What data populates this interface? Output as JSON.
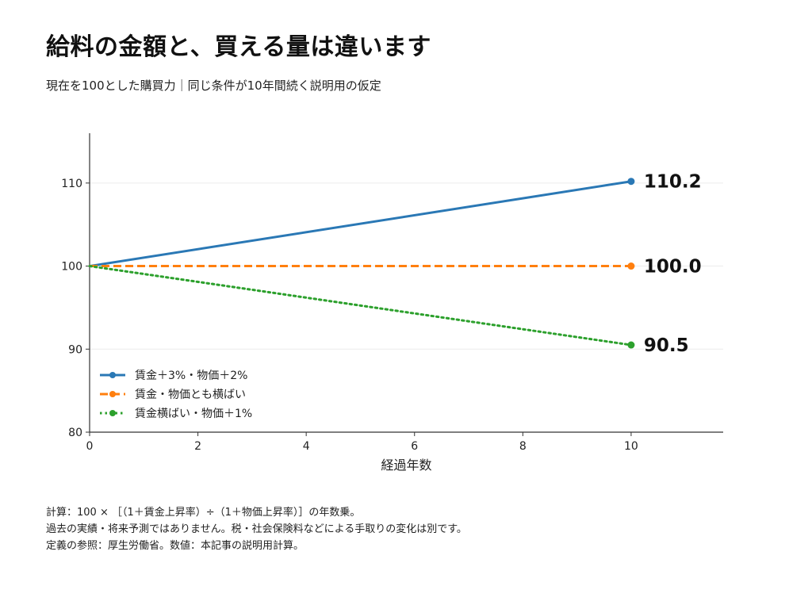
{
  "header": {
    "title": "給料の金額と、買える量は違います",
    "subtitle": "現在を100とした購買力｜同じ条件が10年間続く説明用の仮定"
  },
  "chart_data": {
    "type": "line",
    "xlabel": "経過年数",
    "ylabel": "",
    "xlim": [
      0,
      11.7
    ],
    "ylim": [
      80,
      116
    ],
    "xticks": [
      0,
      2,
      4,
      6,
      8,
      10
    ],
    "yticks": [
      80,
      90,
      100,
      110
    ],
    "grid": "horizontal",
    "legend_position": "lower-left",
    "series": [
      {
        "name": "賃金＋3%・物価＋2%",
        "color": "#2a78b5",
        "style": "solid",
        "x": [
          0,
          10
        ],
        "y": [
          100,
          110.2
        ],
        "end_label": "110.2"
      },
      {
        "name": "賃金・物価とも横ばい",
        "color": "#ff7f0e",
        "style": "dashed",
        "x": [
          0,
          10
        ],
        "y": [
          100,
          100.0
        ],
        "end_label": "100.0"
      },
      {
        "name": "賃金横ばい・物価＋1%",
        "color": "#2ca02c",
        "style": "dotted",
        "x": [
          0,
          10
        ],
        "y": [
          100,
          90.5
        ],
        "end_label": "90.5"
      }
    ]
  },
  "notes": [
    "計算：100 × ［（1＋賃金上昇率）÷（1＋物価上昇率）］の年数乗。",
    "過去の実績・将来予測ではありません。税・社会保険料などによる手取りの変化は別です。",
    "定義の参照：厚生労働省。数値：本記事の説明用計算。"
  ]
}
